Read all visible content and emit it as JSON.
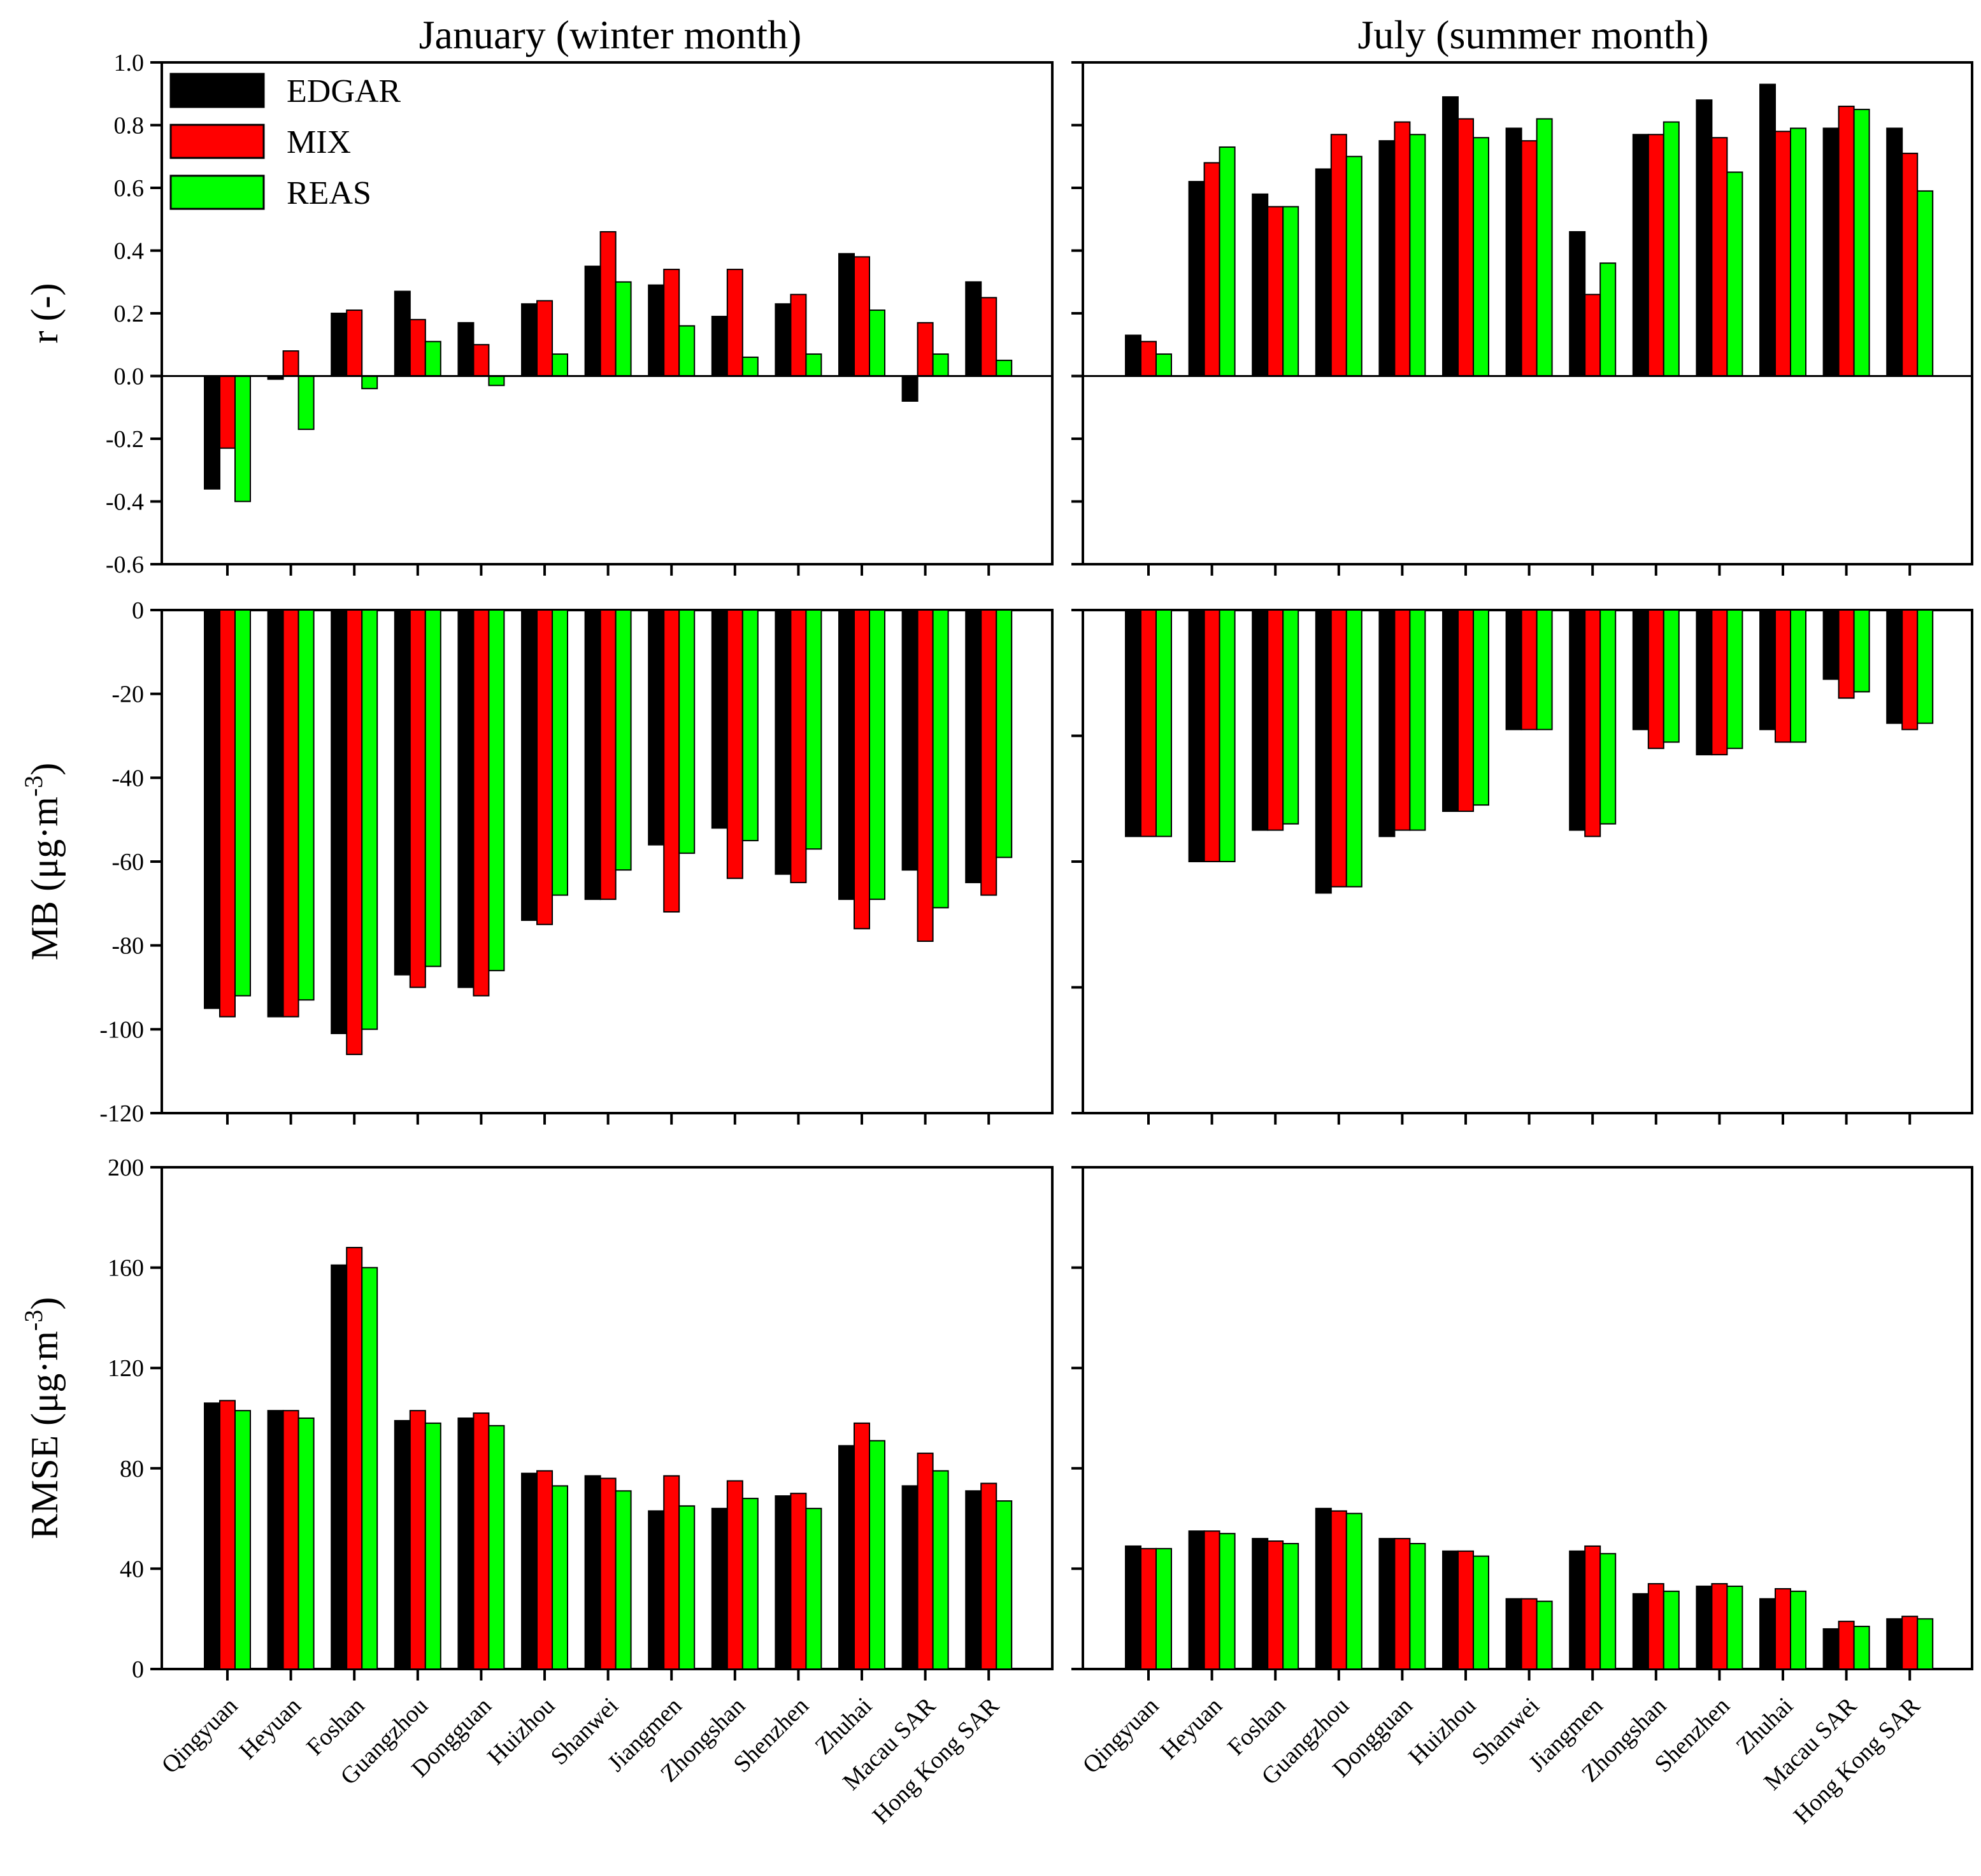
{
  "colors": {
    "EDGAR": "#000000",
    "MIX": "#ff0000",
    "REAS": "#00ff00"
  },
  "column_titles": [
    "January (winter month)",
    "July (summer month)"
  ],
  "legend": [
    "EDGAR",
    "MIX",
    "REAS"
  ],
  "chart_data": [
    {
      "id": "r-january",
      "type": "bar",
      "ylabel": "r (-)",
      "ylabel_parts": [
        "r (-)"
      ],
      "ylim": [
        -0.6,
        1.0
      ],
      "ticks": [
        -0.6,
        -0.4,
        -0.2,
        0.0,
        0.2,
        0.4,
        0.6,
        0.8,
        1.0
      ],
      "tick_labels": [
        "-0.6",
        "-0.4",
        "-0.2",
        "0.0",
        "0.2",
        "0.4",
        "0.6",
        "0.8",
        "1.0"
      ],
      "zero_line": true,
      "categories": [
        "Qingyuan",
        "Heyuan",
        "Foshan",
        "Guangzhou",
        "Dongguan",
        "Huizhou",
        "Shanwei",
        "Jiangmen",
        "Zhongshan",
        "Shenzhen",
        "Zhuhai",
        "Macau SAR",
        "Hong Kong SAR"
      ],
      "series": [
        {
          "name": "EDGAR",
          "values": [
            -0.36,
            -0.01,
            0.2,
            0.27,
            0.17,
            0.23,
            0.35,
            0.29,
            0.19,
            0.23,
            0.39,
            -0.08,
            0.3
          ]
        },
        {
          "name": "MIX",
          "values": [
            -0.23,
            0.08,
            0.21,
            0.18,
            0.1,
            0.24,
            0.46,
            0.34,
            0.34,
            0.26,
            0.38,
            0.17,
            0.25
          ]
        },
        {
          "name": "REAS",
          "values": [
            -0.4,
            -0.17,
            -0.04,
            0.11,
            -0.03,
            0.07,
            0.3,
            0.16,
            0.06,
            0.07,
            0.21,
            0.07,
            0.05
          ]
        }
      ]
    },
    {
      "id": "r-july",
      "type": "bar",
      "ylim": [
        -0.6,
        1.0
      ],
      "ticks": [
        -0.6,
        -0.4,
        -0.2,
        0.0,
        0.2,
        0.4,
        0.6,
        0.8,
        1.0
      ],
      "zero_line": true,
      "categories": [
        "Qingyuan",
        "Heyuan",
        "Foshan",
        "Guangzhou",
        "Dongguan",
        "Huizhou",
        "Shanwei",
        "Jiangmen",
        "Zhongshan",
        "Shenzhen",
        "Zhuhai",
        "Macau SAR",
        "Hong Kong SAR"
      ],
      "series": [
        {
          "name": "EDGAR",
          "values": [
            0.13,
            0.62,
            0.58,
            0.66,
            0.75,
            0.89,
            0.79,
            0.46,
            0.77,
            0.88,
            0.93,
            0.79,
            0.79
          ]
        },
        {
          "name": "MIX",
          "values": [
            0.11,
            0.68,
            0.54,
            0.77,
            0.81,
            0.82,
            0.75,
            0.26,
            0.77,
            0.76,
            0.78,
            0.86,
            0.71
          ]
        },
        {
          "name": "REAS",
          "values": [
            0.07,
            0.73,
            0.54,
            0.7,
            0.77,
            0.76,
            0.82,
            0.36,
            0.81,
            0.65,
            0.79,
            0.85,
            0.59
          ]
        }
      ]
    },
    {
      "id": "mb-january",
      "type": "bar",
      "ylabel": "MB (μg·m-3)",
      "ylabel_parts": [
        "MB (μg·m",
        "-3",
        ")"
      ],
      "ylim": [
        -120,
        0
      ],
      "ticks": [
        -120,
        -100,
        -80,
        -60,
        -40,
        -20,
        0
      ],
      "tick_labels": [
        "-120",
        "-100",
        "-80",
        "-60",
        "-40",
        "-20",
        "0"
      ],
      "categories": [
        "Qingyuan",
        "Heyuan",
        "Foshan",
        "Guangzhou",
        "Dongguan",
        "Huizhou",
        "Shanwei",
        "Jiangmen",
        "Zhongshan",
        "Shenzhen",
        "Zhuhai",
        "Macau SAR",
        "Hong Kong SAR"
      ],
      "series": [
        {
          "name": "EDGAR",
          "values": [
            -95,
            -97,
            -101,
            -87,
            -90,
            -74,
            -69,
            -56,
            -52,
            -63,
            -69,
            -62,
            -65
          ]
        },
        {
          "name": "MIX",
          "values": [
            -97,
            -97,
            -106,
            -90,
            -92,
            -75,
            -69,
            -72,
            -64,
            -65,
            -76,
            -79,
            -68
          ]
        },
        {
          "name": "REAS",
          "values": [
            -92,
            -93,
            -100,
            -85,
            -86,
            -68,
            -62,
            -58,
            -55,
            -57,
            -69,
            -71,
            -59
          ]
        }
      ]
    },
    {
      "id": "mb-july",
      "type": "bar",
      "ylim": [
        -80,
        0
      ],
      "ticks": [
        -80,
        -60,
        -40,
        -20,
        0
      ],
      "categories": [
        "Qingyuan",
        "Heyuan",
        "Foshan",
        "Guangzhou",
        "Dongguan",
        "Huizhou",
        "Shanwei",
        "Jiangmen",
        "Zhongshan",
        "Shenzhen",
        "Zhuhai",
        "Macau SAR",
        "Hong Kong SAR"
      ],
      "series": [
        {
          "name": "EDGAR",
          "values": [
            -36,
            -40,
            -35,
            -45,
            -36,
            -32,
            -19,
            -35,
            -19,
            -23,
            -19,
            -11,
            -18
          ]
        },
        {
          "name": "MIX",
          "values": [
            -36,
            -40,
            -35,
            -44,
            -35,
            -32,
            -19,
            -36,
            -22,
            -23,
            -21,
            -14,
            -19
          ]
        },
        {
          "name": "REAS",
          "values": [
            -36,
            -40,
            -34,
            -44,
            -35,
            -31,
            -19,
            -34,
            -21,
            -22,
            -21,
            -13,
            -18
          ]
        }
      ]
    },
    {
      "id": "rmse-january",
      "type": "bar",
      "ylabel": "RMSE (μg·m-3)",
      "ylabel_parts": [
        "RMSE (μg·m",
        "-3",
        ")"
      ],
      "ylim": [
        0,
        200
      ],
      "ticks": [
        0,
        40,
        80,
        120,
        160,
        200
      ],
      "tick_labels": [
        "0",
        "40",
        "80",
        "120",
        "160",
        "200"
      ],
      "categories": [
        "Qingyuan",
        "Heyuan",
        "Foshan",
        "Guangzhou",
        "Dongguan",
        "Huizhou",
        "Shanwei",
        "Jiangmen",
        "Zhongshan",
        "Shenzhen",
        "Zhuhai",
        "Macau SAR",
        "Hong Kong SAR"
      ],
      "series": [
        {
          "name": "EDGAR",
          "values": [
            106,
            103,
            161,
            99,
            100,
            78,
            77,
            63,
            64,
            69,
            89,
            73,
            71
          ]
        },
        {
          "name": "MIX",
          "values": [
            107,
            103,
            168,
            103,
            102,
            79,
            76,
            77,
            75,
            70,
            98,
            86,
            74
          ]
        },
        {
          "name": "REAS",
          "values": [
            103,
            100,
            160,
            98,
            97,
            73,
            71,
            65,
            68,
            64,
            91,
            79,
            67
          ]
        }
      ]
    },
    {
      "id": "rmse-july",
      "type": "bar",
      "ylim": [
        0,
        200
      ],
      "ticks": [
        0,
        40,
        80,
        120,
        160,
        200
      ],
      "categories": [
        "Qingyuan",
        "Heyuan",
        "Foshan",
        "Guangzhou",
        "Dongguan",
        "Huizhou",
        "Shanwei",
        "Jiangmen",
        "Zhongshan",
        "Shenzhen",
        "Zhuhai",
        "Macau SAR",
        "Hong Kong SAR"
      ],
      "series": [
        {
          "name": "EDGAR",
          "values": [
            49,
            55,
            52,
            64,
            52,
            47,
            28,
            47,
            30,
            33,
            28,
            16,
            20
          ]
        },
        {
          "name": "MIX",
          "values": [
            48,
            55,
            51,
            63,
            52,
            47,
            28,
            49,
            34,
            34,
            32,
            19,
            21
          ]
        },
        {
          "name": "REAS",
          "values": [
            48,
            54,
            50,
            62,
            50,
            45,
            27,
            46,
            31,
            33,
            31,
            17,
            20
          ]
        }
      ]
    }
  ]
}
